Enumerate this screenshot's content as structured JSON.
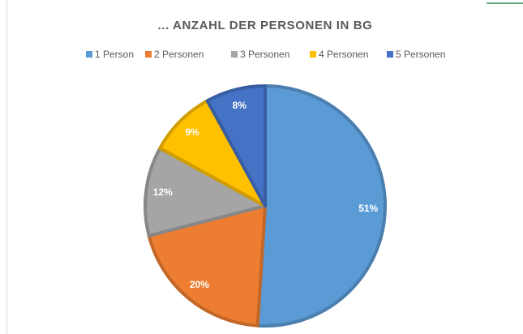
{
  "chart_data": {
    "type": "pie",
    "title": "... ANZAHL DER PERSONEN IN BG",
    "categories": [
      "1 Person",
      "2 Personen",
      "3 Personen",
      "4 Personen",
      "5 Personen"
    ],
    "values": [
      51,
      20,
      12,
      9,
      8
    ],
    "value_labels": [
      "51%",
      "20%",
      "12%",
      "9%",
      "8%"
    ],
    "colors": [
      "#5b9bd5",
      "#ed7d31",
      "#a5a5a5",
      "#ffc000",
      "#4472c4"
    ],
    "legend": "top"
  }
}
